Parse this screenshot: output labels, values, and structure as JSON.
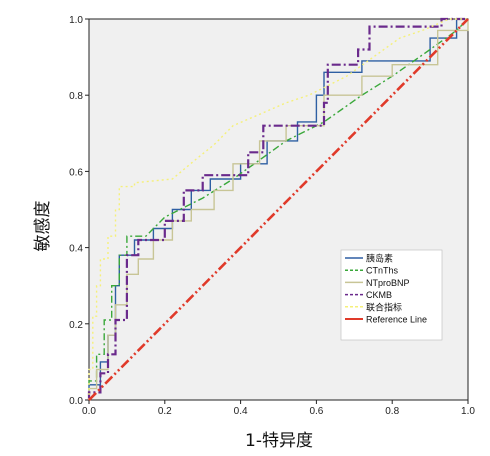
{
  "chart_data": {
    "type": "line",
    "title": "",
    "xlabel": "1-特异度",
    "ylabel": "敏感度",
    "xlim": [
      0,
      1
    ],
    "ylim": [
      0,
      1
    ],
    "x_ticks": [
      "0.0",
      "0.2",
      "0.4",
      "0.6",
      "0.8",
      "1.0"
    ],
    "y_ticks": [
      "0.0",
      "0.2",
      "0.4",
      "0.6",
      "0.8",
      "1.0"
    ],
    "grid": false,
    "legend_position": "lower-right",
    "background": "#f0f0f0",
    "series": [
      {
        "name": "胰岛素",
        "color": "#2e5fa3",
        "dash": "",
        "points": [
          [
            0,
            0
          ],
          [
            0,
            0.04
          ],
          [
            0.03,
            0.04
          ],
          [
            0.03,
            0.1
          ],
          [
            0.05,
            0.1
          ],
          [
            0.05,
            0.17
          ],
          [
            0.07,
            0.17
          ],
          [
            0.07,
            0.3
          ],
          [
            0.08,
            0.3
          ],
          [
            0.08,
            0.38
          ],
          [
            0.12,
            0.38
          ],
          [
            0.12,
            0.42
          ],
          [
            0.17,
            0.42
          ],
          [
            0.17,
            0.45
          ],
          [
            0.22,
            0.45
          ],
          [
            0.22,
            0.5
          ],
          [
            0.27,
            0.5
          ],
          [
            0.27,
            0.55
          ],
          [
            0.32,
            0.55
          ],
          [
            0.32,
            0.58
          ],
          [
            0.4,
            0.58
          ],
          [
            0.4,
            0.62
          ],
          [
            0.47,
            0.62
          ],
          [
            0.47,
            0.68
          ],
          [
            0.55,
            0.68
          ],
          [
            0.55,
            0.73
          ],
          [
            0.6,
            0.73
          ],
          [
            0.6,
            0.8
          ],
          [
            0.62,
            0.8
          ],
          [
            0.62,
            0.86
          ],
          [
            0.72,
            0.86
          ],
          [
            0.72,
            0.89
          ],
          [
            0.9,
            0.89
          ],
          [
            0.9,
            0.95
          ],
          [
            0.97,
            0.95
          ],
          [
            0.97,
            1
          ],
          [
            1,
            1
          ]
        ]
      },
      {
        "name": "CTnThs",
        "color": "#3aa83a",
        "dash": "7 3 2 3",
        "points": [
          [
            0,
            0
          ],
          [
            0,
            0.05
          ],
          [
            0.02,
            0.05
          ],
          [
            0.02,
            0.12
          ],
          [
            0.04,
            0.12
          ],
          [
            0.04,
            0.21
          ],
          [
            0.06,
            0.21
          ],
          [
            0.06,
            0.3
          ],
          [
            0.08,
            0.3
          ],
          [
            0.08,
            0.38
          ],
          [
            0.1,
            0.38
          ],
          [
            0.1,
            0.43
          ],
          [
            0.15,
            0.43
          ],
          [
            0.2,
            0.48
          ],
          [
            0.3,
            0.53
          ],
          [
            0.38,
            0.58
          ],
          [
            0.45,
            0.63
          ],
          [
            0.52,
            0.68
          ],
          [
            0.62,
            0.73
          ],
          [
            0.72,
            0.8
          ],
          [
            0.8,
            0.85
          ],
          [
            0.9,
            0.92
          ],
          [
            0.97,
            0.97
          ],
          [
            1,
            1
          ]
        ]
      },
      {
        "name": "NTproBNP",
        "color": "#c8c596",
        "dash": "",
        "points": [
          [
            0,
            0
          ],
          [
            0,
            0.03
          ],
          [
            0.02,
            0.03
          ],
          [
            0.02,
            0.08
          ],
          [
            0.05,
            0.08
          ],
          [
            0.05,
            0.17
          ],
          [
            0.07,
            0.17
          ],
          [
            0.07,
            0.25
          ],
          [
            0.1,
            0.25
          ],
          [
            0.1,
            0.33
          ],
          [
            0.13,
            0.33
          ],
          [
            0.13,
            0.37
          ],
          [
            0.17,
            0.37
          ],
          [
            0.17,
            0.42
          ],
          [
            0.22,
            0.42
          ],
          [
            0.22,
            0.47
          ],
          [
            0.27,
            0.47
          ],
          [
            0.27,
            0.5
          ],
          [
            0.33,
            0.5
          ],
          [
            0.33,
            0.55
          ],
          [
            0.38,
            0.55
          ],
          [
            0.38,
            0.62
          ],
          [
            0.45,
            0.62
          ],
          [
            0.45,
            0.68
          ],
          [
            0.52,
            0.68
          ],
          [
            0.52,
            0.72
          ],
          [
            0.62,
            0.72
          ],
          [
            0.62,
            0.8
          ],
          [
            0.72,
            0.8
          ],
          [
            0.72,
            0.85
          ],
          [
            0.8,
            0.85
          ],
          [
            0.8,
            0.88
          ],
          [
            0.92,
            0.88
          ],
          [
            0.92,
            0.97
          ],
          [
            1,
            0.97
          ],
          [
            1,
            1
          ]
        ]
      },
      {
        "name": "CKMB",
        "color": "#6a2a8c",
        "dash": "9 3 2 3",
        "points": [
          [
            0,
            0
          ],
          [
            0,
            0.02
          ],
          [
            0.03,
            0.02
          ],
          [
            0.03,
            0.07
          ],
          [
            0.05,
            0.07
          ],
          [
            0.05,
            0.12
          ],
          [
            0.07,
            0.12
          ],
          [
            0.07,
            0.21
          ],
          [
            0.1,
            0.21
          ],
          [
            0.1,
            0.38
          ],
          [
            0.13,
            0.38
          ],
          [
            0.13,
            0.42
          ],
          [
            0.2,
            0.42
          ],
          [
            0.2,
            0.47
          ],
          [
            0.25,
            0.47
          ],
          [
            0.25,
            0.55
          ],
          [
            0.3,
            0.55
          ],
          [
            0.3,
            0.59
          ],
          [
            0.42,
            0.59
          ],
          [
            0.42,
            0.65
          ],
          [
            0.46,
            0.65
          ],
          [
            0.46,
            0.72
          ],
          [
            0.62,
            0.72
          ],
          [
            0.62,
            0.78
          ],
          [
            0.63,
            0.78
          ],
          [
            0.63,
            0.88
          ],
          [
            0.71,
            0.88
          ],
          [
            0.71,
            0.92
          ],
          [
            0.74,
            0.92
          ],
          [
            0.74,
            0.98
          ],
          [
            0.93,
            0.98
          ],
          [
            0.93,
            1
          ],
          [
            1,
            1
          ]
        ]
      },
      {
        "name": "联合指标",
        "color": "#f5f07a",
        "dash": "2 3",
        "points": [
          [
            0,
            0
          ],
          [
            0,
            0.08
          ],
          [
            0.01,
            0.08
          ],
          [
            0.01,
            0.22
          ],
          [
            0.02,
            0.22
          ],
          [
            0.02,
            0.3
          ],
          [
            0.03,
            0.3
          ],
          [
            0.03,
            0.37
          ],
          [
            0.05,
            0.37
          ],
          [
            0.05,
            0.43
          ],
          [
            0.07,
            0.43
          ],
          [
            0.07,
            0.5
          ],
          [
            0.08,
            0.5
          ],
          [
            0.08,
            0.56
          ],
          [
            0.12,
            0.56
          ],
          [
            0.12,
            0.57
          ],
          [
            0.22,
            0.58
          ],
          [
            0.28,
            0.63
          ],
          [
            0.33,
            0.67
          ],
          [
            0.38,
            0.72
          ],
          [
            0.45,
            0.75
          ],
          [
            0.52,
            0.78
          ],
          [
            0.58,
            0.8
          ],
          [
            0.62,
            0.82
          ],
          [
            0.68,
            0.85
          ],
          [
            0.75,
            0.9
          ],
          [
            0.82,
            0.95
          ],
          [
            0.88,
            0.97
          ],
          [
            0.95,
            1
          ],
          [
            1,
            1
          ]
        ]
      },
      {
        "name": "Reference Line",
        "color": "#e03a2a",
        "dash": "10 3 2 3 2 3",
        "points": [
          [
            0,
            0
          ],
          [
            1,
            1
          ]
        ]
      }
    ]
  }
}
